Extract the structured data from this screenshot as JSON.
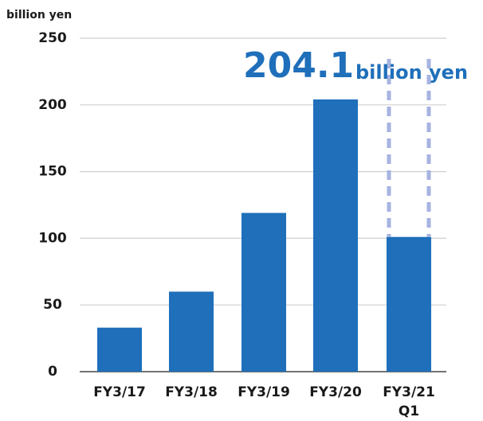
{
  "chart_data": {
    "type": "bar",
    "y_label": "billion yen",
    "categories": [
      "FY3/17",
      "FY3/18",
      "FY3/19",
      "FY3/20",
      "FY3/21\nQ1"
    ],
    "values": [
      33,
      60,
      119,
      204.1,
      101
    ],
    "color": "#1f6fba",
    "ylim": [
      0,
      250
    ],
    "yticks": [
      0,
      50,
      100,
      150,
      200,
      250
    ],
    "grid": true,
    "annotation_unit": "billion yen"
  }
}
